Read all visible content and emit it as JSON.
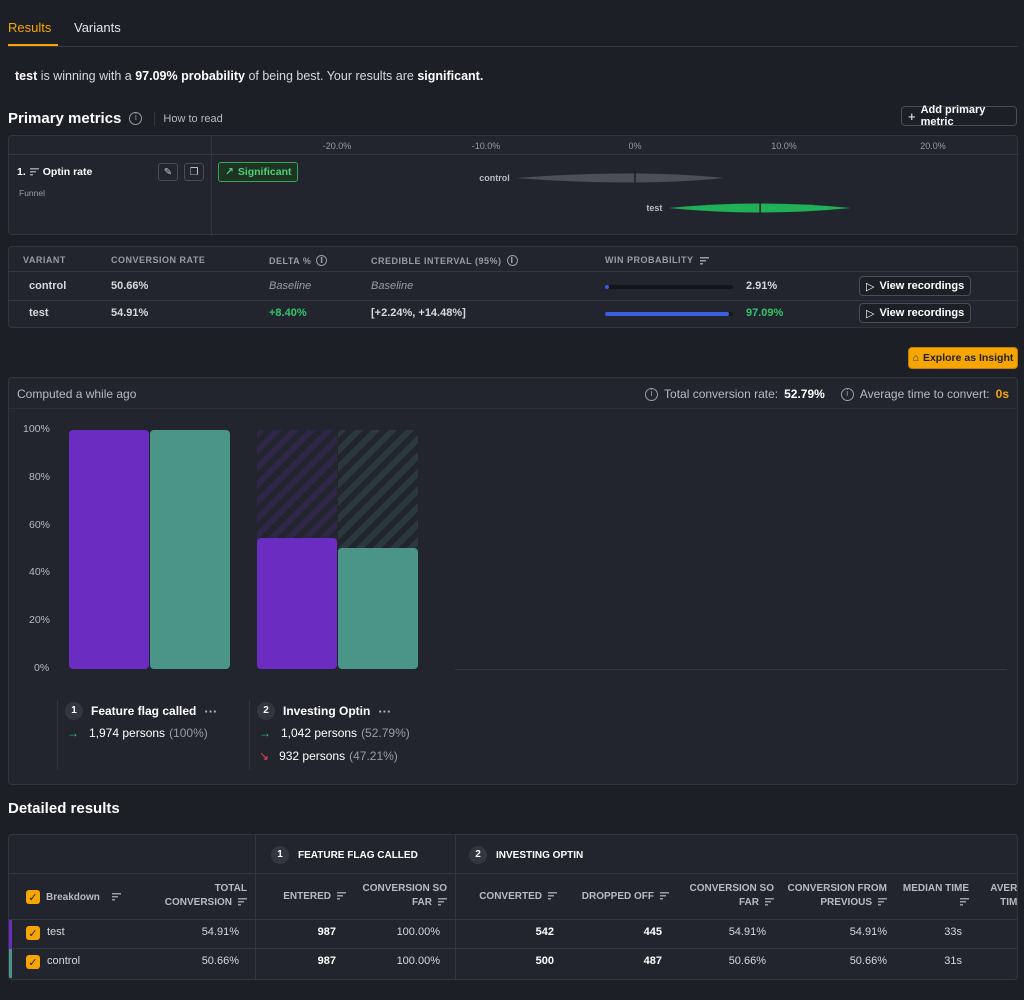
{
  "tabs": [
    {
      "label": "Results",
      "active": true
    },
    {
      "label": "Variants",
      "active": false
    }
  ],
  "summary": {
    "winner": "test",
    "text1": " is winning with a ",
    "probability": "97.09% probability",
    "text2": " of being best. Your results are ",
    "significance": "significant.",
    "text3": ""
  },
  "primary_metrics": {
    "title": "Primary metrics",
    "how_to_read": "How to read",
    "add_button": "Add primary metric",
    "axis_ticks": [
      "-20.0%",
      "-10.0%",
      "0%",
      "10.0%",
      "20.0%"
    ],
    "metric": {
      "index": "1.",
      "name": "Optin rate",
      "type": "Funnel",
      "badge": "Significant"
    },
    "intervals": [
      {
        "variant": "control",
        "low": -8.0,
        "high": 6.0,
        "mid": 0.0,
        "color": "#4d4f57"
      },
      {
        "variant": "test",
        "low": 2.24,
        "high": 14.48,
        "mid": 8.4,
        "color": "#20b05a"
      }
    ]
  },
  "variant_table": {
    "headers": [
      "Variant",
      "Conversion rate",
      "Delta %",
      "Credible interval (95%)",
      "Win probability"
    ],
    "rows": [
      {
        "variant": "control",
        "conversion": "50.66%",
        "delta": "Baseline",
        "interval": "Baseline",
        "win": "2.91%",
        "win_value": 0.0291,
        "win_color": "#d8d8dc",
        "delta_color": "#9a9ca5",
        "action": "View recordings"
      },
      {
        "variant": "test",
        "conversion": "54.91%",
        "delta": "+8.40%",
        "interval": "[+2.24%, +14.48%]",
        "win": "97.09%",
        "win_value": 0.9709,
        "win_color": "#2fc76a",
        "delta_color": "#2fc76a",
        "action": "View recordings"
      }
    ]
  },
  "explore_button": "Explore as Insight",
  "funnel": {
    "computed": "Computed a while ago",
    "total_label": "Total conversion rate:",
    "total_value": "52.79%",
    "avg_label": "Average time to convert:",
    "avg_value": "0s",
    "y_ticks": [
      "100%",
      "80%",
      "60%",
      "40%",
      "20%",
      "0%"
    ],
    "steps": [
      {
        "num": "1",
        "name": "Feature flag called",
        "converted": "1,974 persons",
        "converted_pct": "(100%)",
        "dropped": "",
        "dropped_pct": ""
      },
      {
        "num": "2",
        "name": "Investing Optin",
        "converted": "1,042 persons",
        "converted_pct": "(52.79%)",
        "dropped": "932 persons",
        "dropped_pct": "(47.21%)"
      }
    ],
    "bars": [
      {
        "step": 1,
        "variant": "test",
        "value": 100,
        "color": "#6b2cc1"
      },
      {
        "step": 1,
        "variant": "control",
        "value": 100,
        "color": "#4a9488"
      },
      {
        "step": 2,
        "variant": "test",
        "value": 54.91,
        "color": "#6b2cc1"
      },
      {
        "step": 2,
        "variant": "control",
        "value": 50.66,
        "color": "#4a9488"
      }
    ]
  },
  "detailed": {
    "title": "Detailed results",
    "group1": "Feature flag called",
    "group2": "Investing Optin",
    "headers": [
      "Breakdown",
      "Total conversion",
      "Entered",
      "Conversion so far",
      "Converted",
      "Dropped off",
      "Conversion so far",
      "Conversion from previous",
      "Median time",
      "Average time"
    ],
    "rows": [
      {
        "breakdown": "test",
        "total": "54.91%",
        "entered": "987",
        "so_far1": "100.00%",
        "converted": "542",
        "dropped": "445",
        "so_far2": "54.91%",
        "from_prev": "54.91%",
        "median": "33s",
        "color": "#6b2cc1"
      },
      {
        "breakdown": "control",
        "total": "50.66%",
        "entered": "987",
        "so_far1": "100.00%",
        "converted": "500",
        "dropped": "487",
        "so_far2": "50.66%",
        "from_prev": "50.66%",
        "median": "31s",
        "color": "#4a9488"
      }
    ]
  }
}
